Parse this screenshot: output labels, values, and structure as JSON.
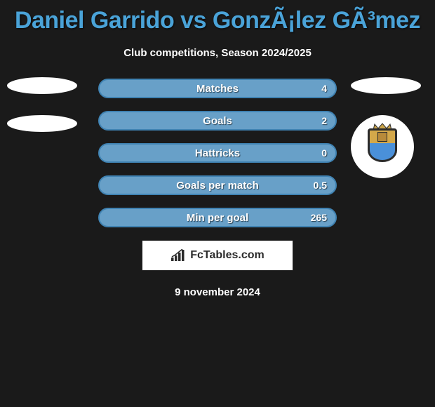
{
  "title": "Daniel Garrido vs GonzÃ¡lez GÃ³mez",
  "subtitle": "Club competitions, Season 2024/2025",
  "date": "9 november 2024",
  "brand_text": "FcTables.com",
  "background_color": "#1a1a1a",
  "title_color": "#4aa3d8",
  "bar_colors": {
    "fill": "#68a0c8",
    "border": "#4083b3"
  },
  "left_player": {
    "badges": [
      "ellipse",
      "ellipse"
    ]
  },
  "right_player": {
    "badges": [
      "ellipse",
      "club"
    ]
  },
  "stats": [
    {
      "label": "Matches",
      "right_value": "4"
    },
    {
      "label": "Goals",
      "right_value": "2"
    },
    {
      "label": "Hattricks",
      "right_value": "0"
    },
    {
      "label": "Goals per match",
      "right_value": "0.5"
    },
    {
      "label": "Min per goal",
      "right_value": "265"
    }
  ]
}
